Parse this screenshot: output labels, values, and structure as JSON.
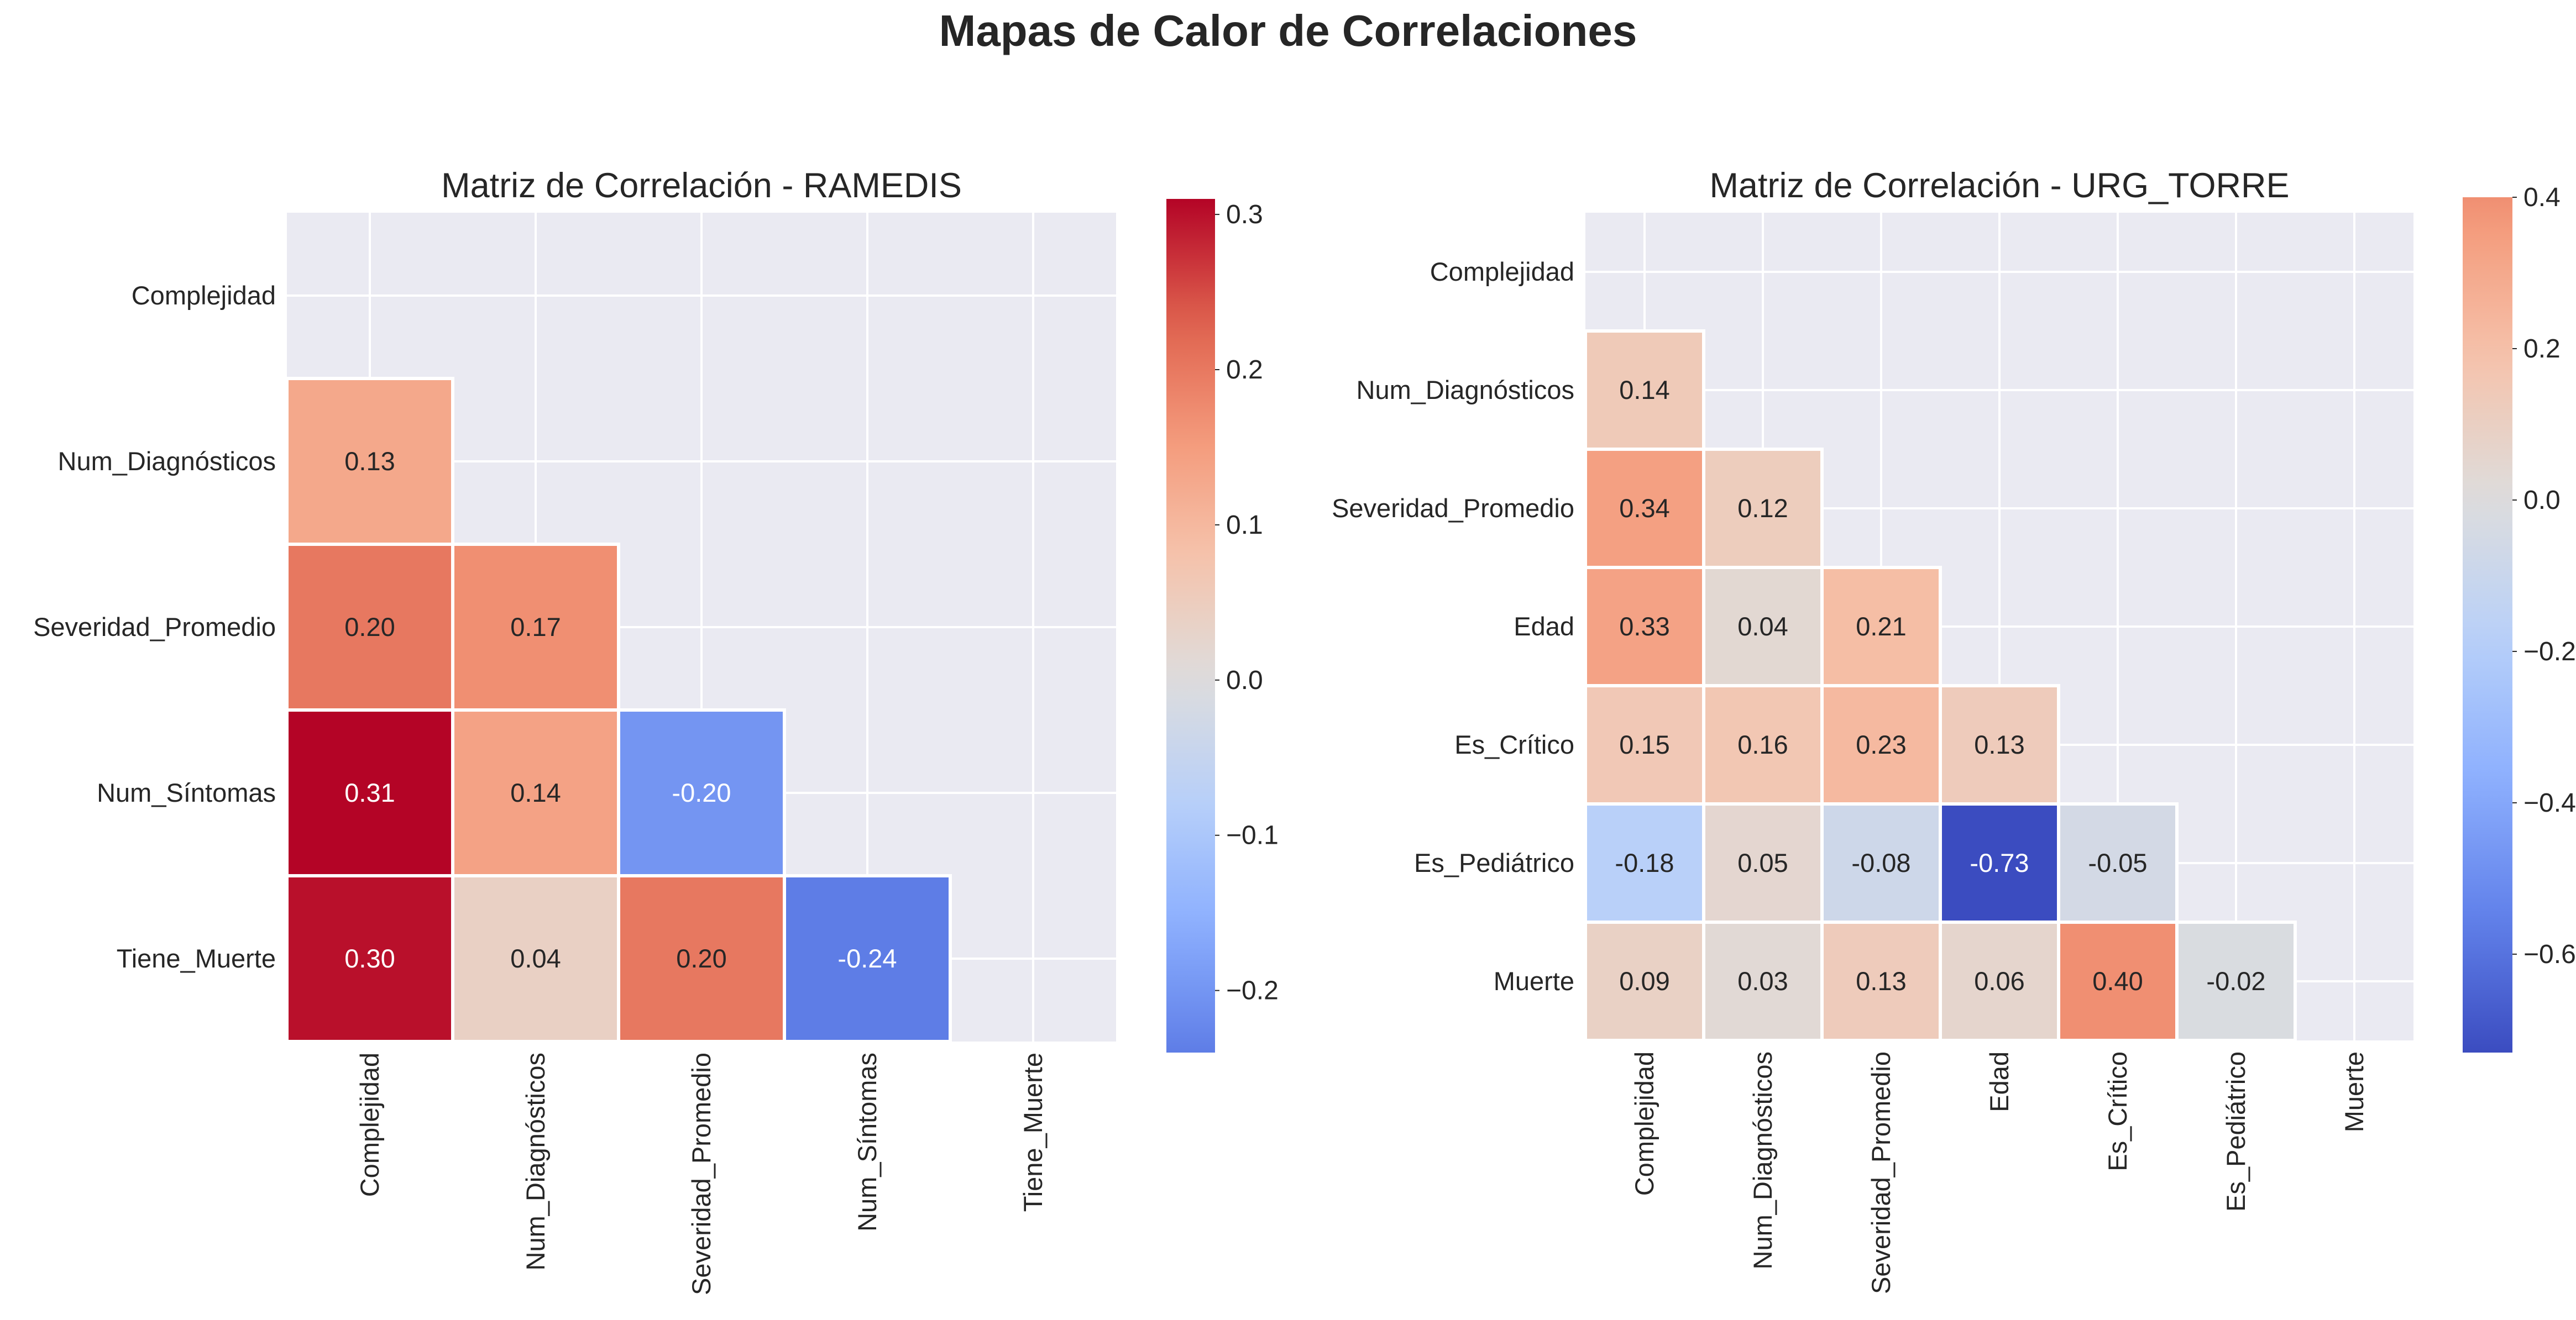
{
  "figure": {
    "suptitle": "Mapas de Calor de Correlaciones",
    "background": "#ffffff",
    "axes_facecolor": "#eaeaf2",
    "cell_edge_color": "#ffffff"
  },
  "chart_data": [
    {
      "type": "heatmap",
      "title": "Matriz de Correlación - RAMEDIS",
      "mask": "upper-triangle-including-diagonal",
      "colormap": "coolwarm",
      "x_tick_labels": [
        "Complejidad",
        "Num_Diagnósticos",
        "Severidad_Promedio",
        "Num_Síntomas",
        "Tiene_Muerte"
      ],
      "y_tick_labels": [
        "Complejidad",
        "Num_Diagnósticos",
        "Severidad_Promedio",
        "Num_Síntomas",
        "Tiene_Muerte"
      ],
      "matrix": [
        [
          null,
          null,
          null,
          null,
          null
        ],
        [
          0.13,
          null,
          null,
          null,
          null
        ],
        [
          0.2,
          0.17,
          null,
          null,
          null
        ],
        [
          0.31,
          0.14,
          -0.2,
          null,
          null
        ],
        [
          0.3,
          0.04,
          0.2,
          -0.24,
          null
        ]
      ],
      "cell_labels": [
        [
          null,
          null,
          null,
          null,
          null
        ],
        [
          "0.13",
          null,
          null,
          null,
          null
        ],
        [
          "0.20",
          "0.17",
          null,
          null,
          null
        ],
        [
          "0.31",
          "0.14",
          "-0.20",
          null,
          null
        ],
        [
          "0.30",
          "0.04",
          "0.20",
          "-0.24",
          null
        ]
      ],
      "colorbar": {
        "vmin": -0.24,
        "vmax": 0.31,
        "ticks": [
          -0.2,
          -0.1,
          0.0,
          0.1,
          0.2,
          0.3
        ],
        "tick_labels": [
          "−0.2",
          "−0.1",
          "0.0",
          "0.1",
          "0.2",
          "0.3"
        ]
      }
    },
    {
      "type": "heatmap",
      "title": "Matriz de Correlación - URG_TORRE",
      "mask": "upper-triangle-including-diagonal",
      "colormap": "coolwarm",
      "x_tick_labels": [
        "Complejidad",
        "Num_Diagnósticos",
        "Severidad_Promedio",
        "Edad",
        "Es_Crítico",
        "Es_Pediátrico",
        "Muerte"
      ],
      "y_tick_labels": [
        "Complejidad",
        "Num_Diagnósticos",
        "Severidad_Promedio",
        "Edad",
        "Es_Crítico",
        "Es_Pediátrico",
        "Muerte"
      ],
      "matrix": [
        [
          null,
          null,
          null,
          null,
          null,
          null,
          null
        ],
        [
          0.14,
          null,
          null,
          null,
          null,
          null,
          null
        ],
        [
          0.34,
          0.12,
          null,
          null,
          null,
          null,
          null
        ],
        [
          0.33,
          0.04,
          0.21,
          null,
          null,
          null,
          null
        ],
        [
          0.15,
          0.16,
          0.23,
          0.13,
          null,
          null,
          null
        ],
        [
          -0.18,
          0.05,
          -0.08,
          -0.73,
          -0.05,
          null,
          null
        ],
        [
          0.09,
          0.03,
          0.13,
          0.06,
          0.4,
          -0.02,
          null
        ]
      ],
      "cell_labels": [
        [
          null,
          null,
          null,
          null,
          null,
          null,
          null
        ],
        [
          "0.14",
          null,
          null,
          null,
          null,
          null,
          null
        ],
        [
          "0.34",
          "0.12",
          null,
          null,
          null,
          null,
          null
        ],
        [
          "0.33",
          "0.04",
          "0.21",
          null,
          null,
          null,
          null
        ],
        [
          "0.15",
          "0.16",
          "0.23",
          "0.13",
          null,
          null,
          null
        ],
        [
          "-0.18",
          "0.05",
          "-0.08",
          "-0.73",
          "-0.05",
          null,
          null
        ],
        [
          "0.09",
          "0.03",
          "0.13",
          "0.06",
          "0.40",
          "-0.02",
          null
        ]
      ],
      "colorbar": {
        "vmin": -0.73,
        "vmax": 0.4,
        "ticks": [
          -0.6,
          -0.4,
          -0.2,
          0.0,
          0.2,
          0.4
        ],
        "tick_labels": [
          "−0.6",
          "−0.4",
          "−0.2",
          "0.0",
          "0.2",
          "0.4"
        ]
      }
    }
  ]
}
